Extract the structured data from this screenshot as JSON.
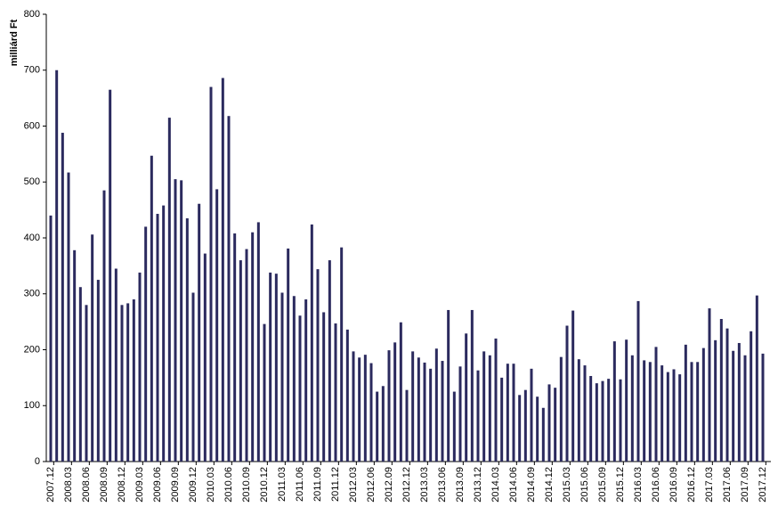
{
  "chart_data": {
    "type": "bar",
    "y_axis_label": "milliárd Ft",
    "color": "#2b2a5e",
    "grid": false,
    "ylim": [
      0,
      800
    ],
    "yticks": [
      0,
      100,
      200,
      300,
      400,
      500,
      600,
      700,
      800
    ],
    "categories": [
      "2007.12",
      null,
      null,
      "2008.03",
      null,
      null,
      "2008.06",
      null,
      null,
      "2008.09",
      null,
      null,
      "2008.12",
      null,
      null,
      "2009.03",
      null,
      null,
      "2009.06",
      null,
      null,
      "2009.09",
      null,
      null,
      "2009.12",
      null,
      null,
      "2010.03",
      null,
      null,
      "2010.06",
      null,
      null,
      "2010.09",
      null,
      null,
      "2010.12",
      null,
      null,
      "2011.03",
      null,
      null,
      "2011.06",
      null,
      null,
      "2011.09",
      null,
      null,
      "2011.12",
      null,
      null,
      "2012.03",
      null,
      null,
      "2012.06",
      null,
      null,
      "2012.09",
      null,
      null,
      "2012.12",
      null,
      null,
      "2013.03",
      null,
      null,
      "2013.06",
      null,
      null,
      "2013.09",
      null,
      null,
      "2013.12",
      null,
      null,
      "2014.03",
      null,
      null,
      "2014.06",
      null,
      null,
      "2014.09",
      null,
      null,
      "2014.12",
      null,
      null,
      "2015.03",
      null,
      null,
      "2015.06",
      null,
      null,
      "2015.09",
      null,
      null,
      "2015.12",
      null,
      null,
      "2016.03",
      null,
      null,
      "2016.06",
      null,
      null,
      "2016.09",
      null,
      null,
      "2016.12",
      null,
      null,
      "2017.03",
      null,
      null,
      "2017.06",
      null,
      null,
      "2017.09",
      null,
      null,
      "2017.12"
    ],
    "values": [
      440,
      700,
      588,
      517,
      378,
      312,
      280,
      406,
      325,
      485,
      665,
      345,
      280,
      283,
      290,
      338,
      420,
      547,
      443,
      458,
      615,
      505,
      503,
      435,
      302,
      461,
      372,
      670,
      487,
      686,
      618,
      408,
      360,
      380,
      410,
      428,
      246,
      338,
      336,
      302,
      381,
      296,
      261,
      290,
      424,
      344,
      267,
      360,
      247,
      383,
      236,
      197,
      186,
      191,
      176,
      125,
      135,
      199,
      213,
      249,
      128,
      197,
      186,
      177,
      166,
      202,
      180,
      271,
      125,
      170,
      229,
      271,
      163,
      197,
      190,
      220,
      150,
      175,
      175,
      119,
      128,
      166,
      116,
      96,
      138,
      132,
      187,
      243,
      270,
      183,
      172,
      153,
      140,
      144,
      148,
      215,
      147,
      218,
      190,
      287,
      181,
      178,
      205,
      172,
      160,
      165,
      156,
      209,
      178,
      178,
      203,
      274,
      217,
      255,
      238,
      198,
      212,
      190,
      233,
      297,
      193
    ]
  }
}
